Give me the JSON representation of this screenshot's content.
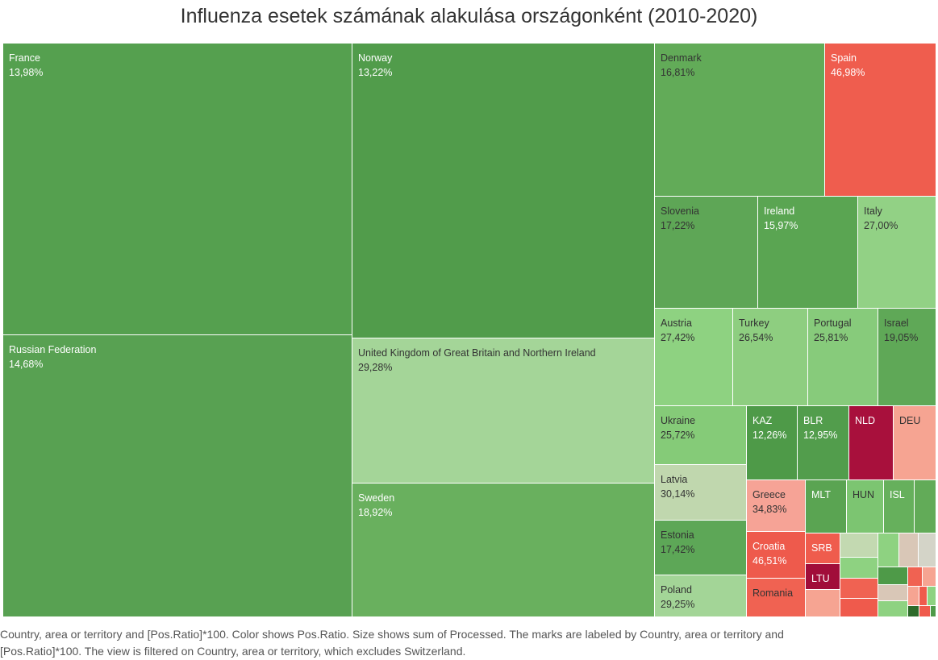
{
  "title": "Influenza esetek számának alakulása országonként (2010-2020)",
  "footnote": [
    "Country, area or territory and [Pos.Ratio]*100.  Color shows Pos.Ratio.  Size shows sum of Processed.  The marks are labeled by Country, area or territory and",
    "[Pos.Ratio]*100. The view is filtered on Country, area or territory, which excludes Switzerland."
  ],
  "chart_data": {
    "type": "treemap",
    "title": "Influenza esetek számának alakulása országonként (2010-2020)",
    "size_measure": "sum of Processed",
    "color_measure": "Pos.Ratio",
    "color_scale": {
      "low": "#4e9a48",
      "mid": "#c0cfb2",
      "high": "#a8103c"
    },
    "items": [
      {
        "label": "France",
        "value": "13,98%",
        "pos_ratio_pct": 13.98
      },
      {
        "label": "Russian Federation",
        "value": "14,68%",
        "pos_ratio_pct": 14.68
      },
      {
        "label": "Norway",
        "value": "13,22%",
        "pos_ratio_pct": 13.22
      },
      {
        "label": "United Kingdom of Great Britain and Northern Ireland",
        "value": "29,28%",
        "pos_ratio_pct": 29.28
      },
      {
        "label": "Sweden",
        "value": "18,92%",
        "pos_ratio_pct": 18.92
      },
      {
        "label": "Denmark",
        "value": "16,81%",
        "pos_ratio_pct": 16.81
      },
      {
        "label": "Spain",
        "value": "46,98%",
        "pos_ratio_pct": 46.98
      },
      {
        "label": "Slovenia",
        "value": "17,22%",
        "pos_ratio_pct": 17.22
      },
      {
        "label": "Ireland",
        "value": "15,97%",
        "pos_ratio_pct": 15.97
      },
      {
        "label": "Italy",
        "value": "27,00%",
        "pos_ratio_pct": 27.0
      },
      {
        "label": "Austria",
        "value": "27,42%",
        "pos_ratio_pct": 27.42
      },
      {
        "label": "Turkey",
        "value": "26,54%",
        "pos_ratio_pct": 26.54
      },
      {
        "label": "Portugal",
        "value": "25,81%",
        "pos_ratio_pct": 25.81
      },
      {
        "label": "Israel",
        "value": "19,05%",
        "pos_ratio_pct": 19.05
      },
      {
        "label": "Ukraine",
        "value": "25,72%",
        "pos_ratio_pct": 25.72
      },
      {
        "label": "KAZ",
        "value": "12,26%",
        "pos_ratio_pct": 12.26
      },
      {
        "label": "BLR",
        "value": "12,95%",
        "pos_ratio_pct": 12.95
      },
      {
        "label": "NLD",
        "value": "",
        "pos_ratio_pct": null
      },
      {
        "label": "DEU",
        "value": "",
        "pos_ratio_pct": null
      },
      {
        "label": "Latvia",
        "value": "30,14%",
        "pos_ratio_pct": 30.14
      },
      {
        "label": "Greece",
        "value": "34,83%",
        "pos_ratio_pct": 34.83
      },
      {
        "label": "MLT",
        "value": "",
        "pos_ratio_pct": null
      },
      {
        "label": "HUN",
        "value": "",
        "pos_ratio_pct": null
      },
      {
        "label": "ISL",
        "value": "",
        "pos_ratio_pct": null
      },
      {
        "label": "Estonia",
        "value": "17,42%",
        "pos_ratio_pct": 17.42
      },
      {
        "label": "Croatia",
        "value": "46,51%",
        "pos_ratio_pct": 46.51
      },
      {
        "label": "SRB",
        "value": "",
        "pos_ratio_pct": null
      },
      {
        "label": "LTU",
        "value": "",
        "pos_ratio_pct": null
      },
      {
        "label": "Poland",
        "value": "29,25%",
        "pos_ratio_pct": 29.25
      },
      {
        "label": "Romania",
        "value": "",
        "pos_ratio_pct": null
      }
    ],
    "unlabeled_cells": 26
  }
}
